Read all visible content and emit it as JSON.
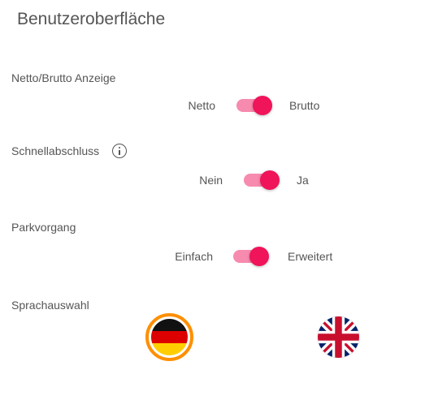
{
  "page": {
    "title": "Benutzeroberfläche"
  },
  "settings": {
    "net_gross": {
      "label": "Netto/Brutto Anzeige",
      "off_label": "Netto",
      "on_label": "Brutto",
      "checked": true
    },
    "quick_checkout": {
      "label": "Schnellabschluss",
      "info_icon": "info-icon",
      "off_label": "Nein",
      "on_label": "Ja",
      "checked": true
    },
    "parking": {
      "label": "Parkvorgang",
      "off_label": "Einfach",
      "on_label": "Erweitert",
      "checked": true
    },
    "language": {
      "label": "Sprachauswahl",
      "options": [
        {
          "icon": "german-flag-icon",
          "selected": true
        },
        {
          "icon": "uk-flag-icon",
          "selected": false
        }
      ]
    }
  },
  "colors": {
    "accent": "#f0145a",
    "track": "#f78aaf",
    "selected_ring": "#ff8f00",
    "text": "#555555"
  }
}
